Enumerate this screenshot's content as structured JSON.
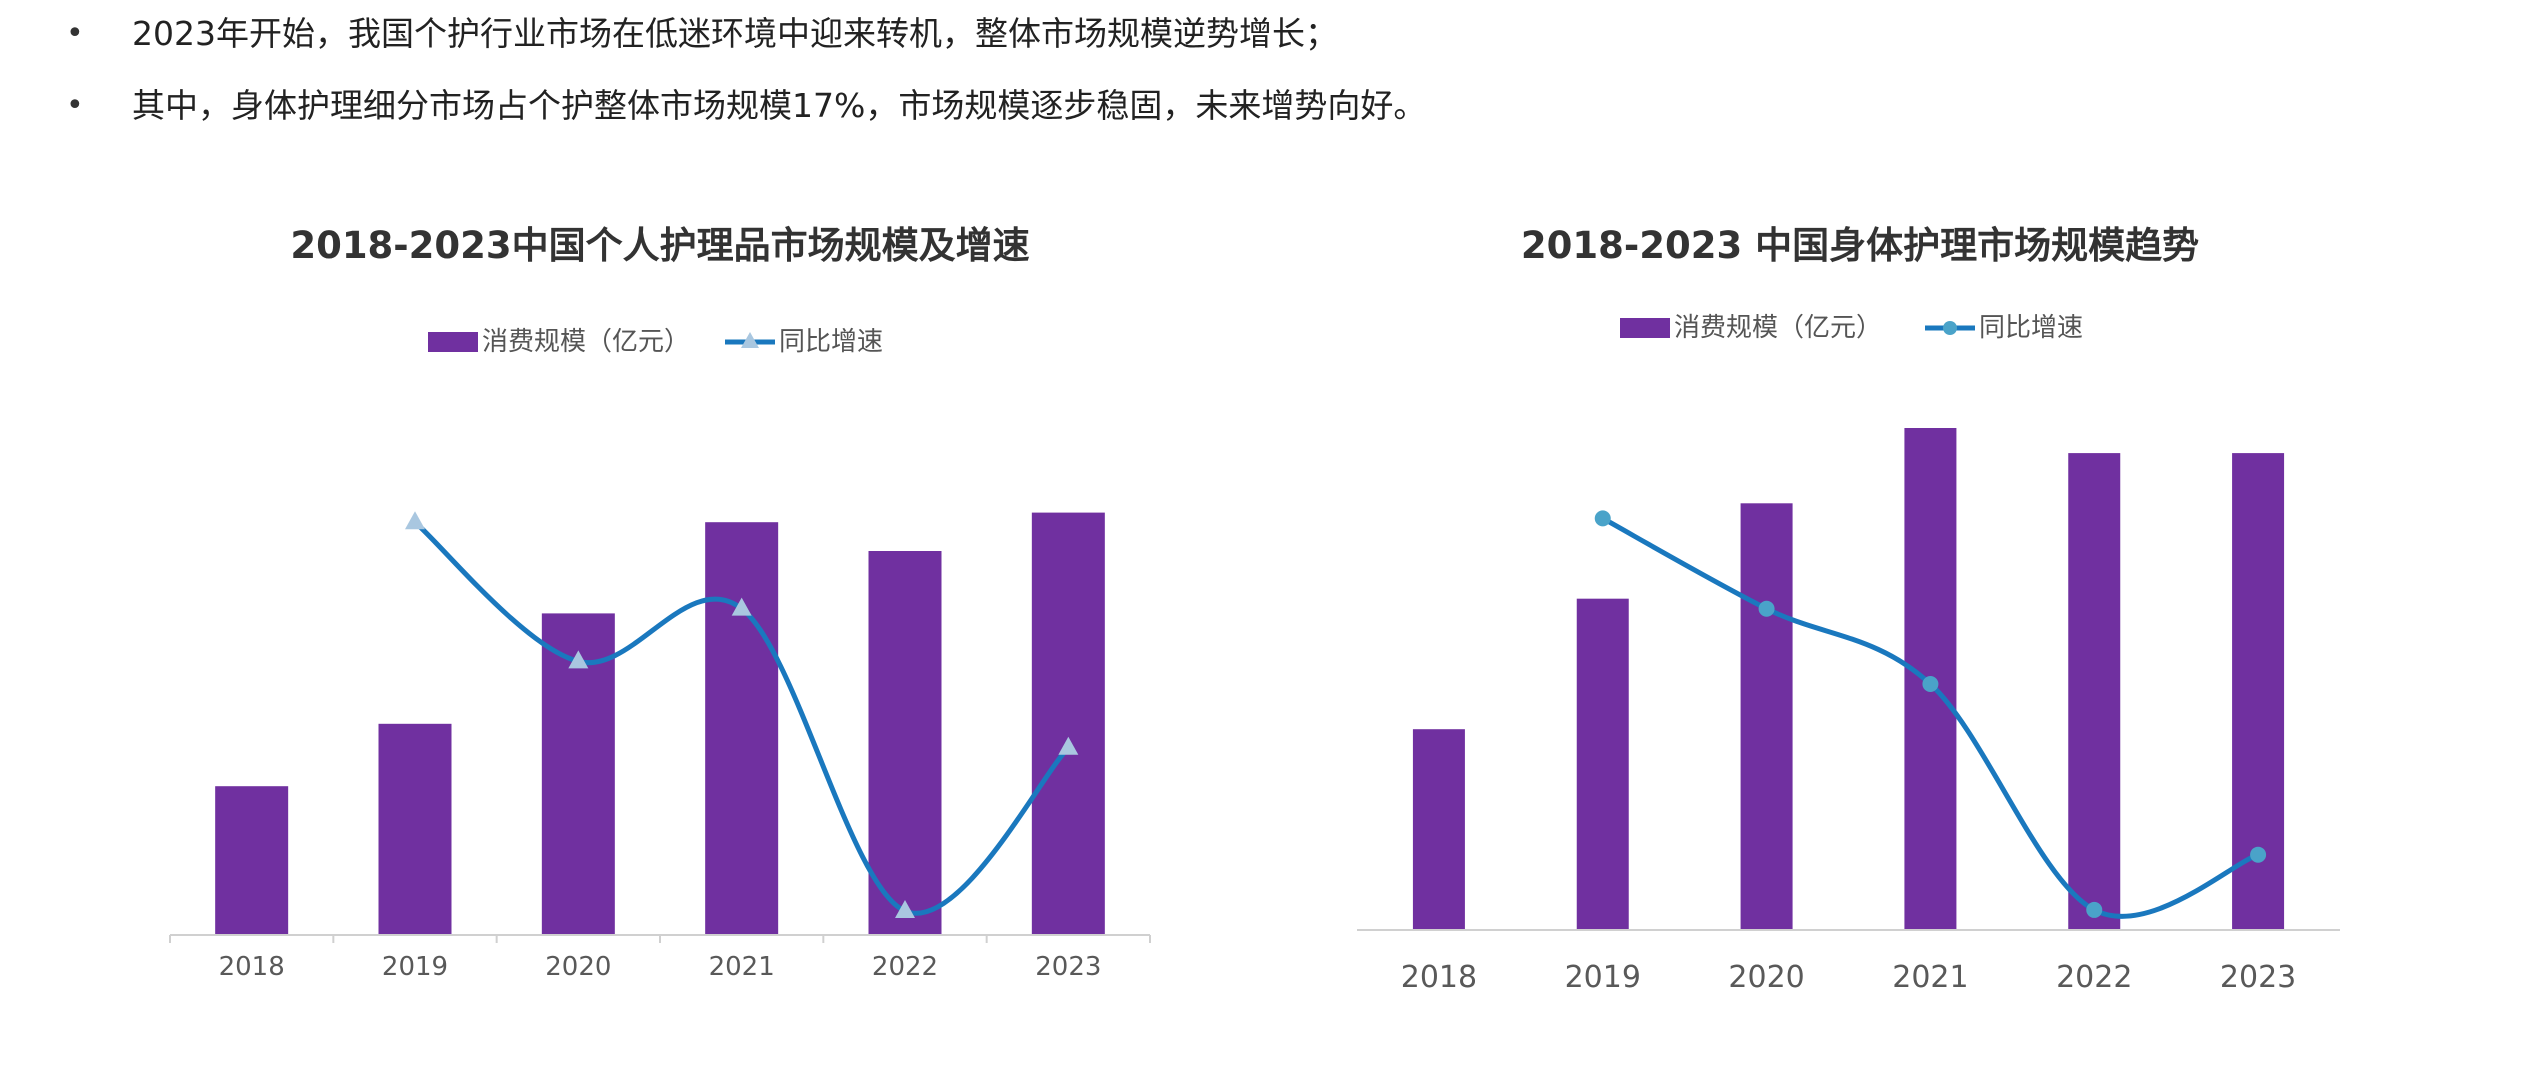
{
  "bullets": [
    "2023年开始，我国个护行业市场在低迷环境中迎来转机，整体市场规模逆势增长；",
    "其中，身体护理细分市场占个护整体市场规模17%，市场规模逐步稳固，未来增势向好。"
  ],
  "bullet_symbol": "•",
  "chart_data": [
    {
      "type": "bar",
      "title": "2018-2023中国个人护理品市场规模及增速",
      "categories": [
        "2018",
        "2019",
        "2020",
        "2021",
        "2022",
        "2023"
      ],
      "series": [
        {
          "name": "消费规模（亿元）",
          "type": "bar",
          "values": [
            31,
            44,
            67,
            86,
            80,
            88
          ],
          "color": "#7030a0"
        },
        {
          "name": "同比增速",
          "type": "line",
          "marker": "triangle",
          "values": [
            null,
            86,
            57,
            68,
            5,
            39
          ],
          "color": "#1a78be",
          "marker_color": "#a9c7e0"
        }
      ],
      "axes_labels_shown": false,
      "ylim": [
        0,
        100
      ],
      "legend": "top"
    },
    {
      "type": "bar",
      "title": "2018-2023 中国身体护理市场规模趋势",
      "categories": [
        "2018",
        "2019",
        "2020",
        "2021",
        "2022",
        "2023"
      ],
      "series": [
        {
          "name": "消费规模（亿元）",
          "type": "bar",
          "values": [
            40,
            66,
            85,
            100,
            95,
            95
          ],
          "color": "#7030a0"
        },
        {
          "name": "同比增速",
          "type": "line",
          "marker": "circle",
          "values": [
            null,
            82,
            64,
            49,
            4,
            15
          ],
          "color": "#1a78be",
          "marker_color": "#4aa3c9"
        }
      ],
      "axes_labels_shown": false,
      "ylim": [
        0,
        100
      ],
      "legend": "top"
    }
  ]
}
